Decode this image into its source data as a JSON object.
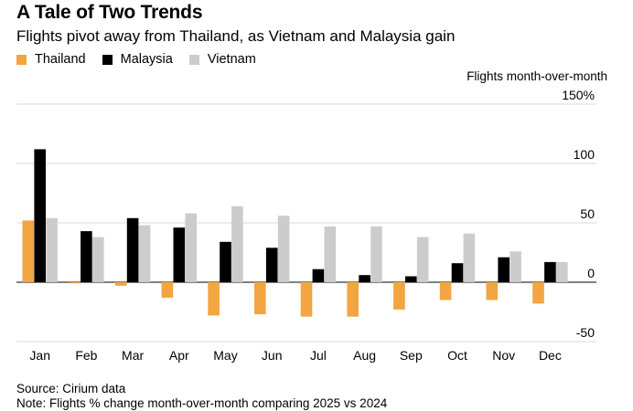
{
  "header": {
    "title": "A Tale of Two Trends",
    "subtitle": "Flights pivot away from Thailand, as Vietnam and Malaysia gain",
    "y_unit_label": "Flights month-over-month"
  },
  "footer": {
    "source": "Source: Cirium data",
    "note": "Note: Flights % change month-over-month comparing 2025 vs 2024"
  },
  "chart_data": {
    "type": "bar",
    "title": "A Tale of Two Trends",
    "subtitle": "Flights pivot away from Thailand, as Vietnam and Malaysia gain",
    "ylabel": "Flights month-over-month",
    "ylim": [
      -50,
      150
    ],
    "yticks": [
      -50,
      0,
      50,
      100,
      150
    ],
    "ytick_labels": [
      "-50",
      "0",
      "50",
      "100",
      "150%"
    ],
    "categories": [
      "Jan",
      "Feb",
      "Mar",
      "Apr",
      "May",
      "Jun",
      "Jul",
      "Aug",
      "Sep",
      "Oct",
      "Nov",
      "Dec"
    ],
    "series": [
      {
        "name": "Thailand",
        "color": "#F2A541",
        "values": [
          52,
          -1,
          -3,
          -13,
          -28,
          -27,
          -29,
          -29,
          -23,
          -15,
          -15,
          -18
        ]
      },
      {
        "name": "Malaysia",
        "color": "#000000",
        "values": [
          112,
          43,
          54,
          46,
          34,
          29,
          11,
          6,
          5,
          16,
          21,
          17
        ]
      },
      {
        "name": "Vietnam",
        "color": "#CCCCCC",
        "values": [
          54,
          38,
          48,
          58,
          64,
          56,
          47,
          47,
          38,
          41,
          26,
          17
        ]
      }
    ],
    "legend": "top-left",
    "grid": true
  }
}
